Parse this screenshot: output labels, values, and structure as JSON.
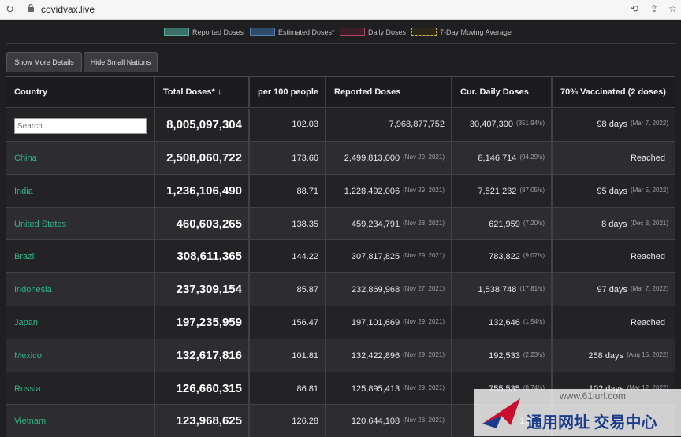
{
  "browser": {
    "url": "covidvax.live"
  },
  "legend": [
    {
      "label": "Reported Doses",
      "color": "#3c6f67",
      "border": "#56a99b"
    },
    {
      "label": "Estimated Doses*",
      "color": "#2f4b6a",
      "border": "#4e7fb5"
    },
    {
      "label": "Daily Doses",
      "color": "#3a1f29",
      "border": "#b0475f"
    },
    {
      "label": "7-Day Moving Average",
      "color": "#2a2719",
      "border": "#c7b24a"
    }
  ],
  "buttons": {
    "details": "Show More Details",
    "small": "Hide Small Nations"
  },
  "table": {
    "headers": [
      "Country",
      "Total Doses* ↓",
      "per 100 people",
      "Reported Doses",
      "Cur. Daily Doses",
      "70% Vaccinated (2 doses)"
    ],
    "search_placeholder": "Search...",
    "world": {
      "total": "8,005,097,304",
      "per100": "102.03",
      "reported": "7,968,877,752",
      "daily": "30,407,300",
      "daily_rate": "(351.94/s)",
      "vacc": "98 days",
      "vacc_date": "(Mar 7, 2022)"
    },
    "rows": [
      {
        "country": "China",
        "total": "2,508,060,722",
        "per100": "173.66",
        "reported": "2,499,813,000",
        "rep_date": "(Nov 29, 2021)",
        "daily": "8,146,714",
        "daily_rate": "(94.29/s)",
        "vacc": "Reached",
        "vacc_date": ""
      },
      {
        "country": "India",
        "total": "1,236,106,490",
        "per100": "88.71",
        "reported": "1,228,492,006",
        "rep_date": "(Nov 29, 2021)",
        "daily": "7,521,232",
        "daily_rate": "(87.05/s)",
        "vacc": "95 days",
        "vacc_date": "(Mar 5, 2022)"
      },
      {
        "country": "United States",
        "total": "460,603,265",
        "per100": "138.35",
        "reported": "459,234,791",
        "rep_date": "(Nov 28, 2021)",
        "daily": "621,959",
        "daily_rate": "(7.20/s)",
        "vacc": "8 days",
        "vacc_date": "(Dec 8, 2021)"
      },
      {
        "country": "Brazil",
        "total": "308,611,365",
        "per100": "144.22",
        "reported": "307,817,825",
        "rep_date": "(Nov 29, 2021)",
        "daily": "783,822",
        "daily_rate": "(9.07/s)",
        "vacc": "Reached",
        "vacc_date": ""
      },
      {
        "country": "Indonesia",
        "total": "237,309,154",
        "per100": "85.87",
        "reported": "232,869,968",
        "rep_date": "(Nov 27, 2021)",
        "daily": "1,538,748",
        "daily_rate": "(17.81/s)",
        "vacc": "97 days",
        "vacc_date": "(Mar 7, 2022)"
      },
      {
        "country": "Japan",
        "total": "197,235,959",
        "per100": "156.47",
        "reported": "197,101,669",
        "rep_date": "(Nov 29, 2021)",
        "daily": "132,646",
        "daily_rate": "(1.54/s)",
        "vacc": "Reached",
        "vacc_date": ""
      },
      {
        "country": "Mexico",
        "total": "132,617,816",
        "per100": "101.81",
        "reported": "132,422,896",
        "rep_date": "(Nov 29, 2021)",
        "daily": "192,533",
        "daily_rate": "(2.23/s)",
        "vacc": "258 days",
        "vacc_date": "(Aug 15, 2022)"
      },
      {
        "country": "Russia",
        "total": "126,660,315",
        "per100": "86.81",
        "reported": "125,895,413",
        "rep_date": "(Nov 29, 2021)",
        "daily": "755,535",
        "daily_rate": "(8.74/s)",
        "vacc": "102 days",
        "vacc_date": "(Mar 12, 2022)"
      },
      {
        "country": "Vietnam",
        "total": "123,968,625",
        "per100": "126.28",
        "reported": "120,644,108",
        "rep_date": "(Nov 28, 2021)",
        "daily": "1,628",
        "daily_rate": "",
        "vacc": "",
        "vacc_date": ""
      }
    ]
  },
  "watermark": {
    "domain": "www.61iurl.com",
    "brand": "通用网址 交易中心"
  }
}
